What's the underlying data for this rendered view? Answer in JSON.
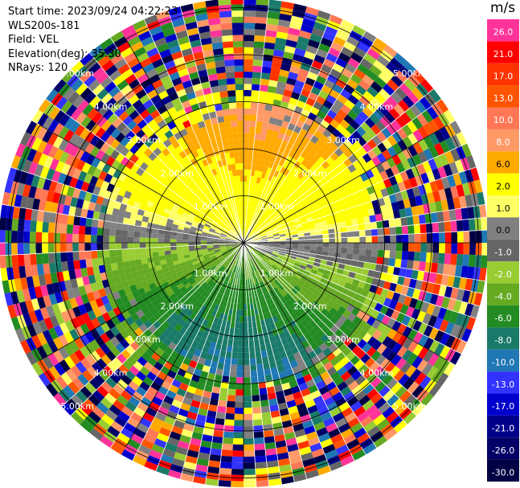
{
  "info": {
    "start_time": "Start time: 2023/09/24 04:22:23",
    "instrument": "WLS200s-181",
    "field": "Field: VEL",
    "elevation": "Elevation(deg): 35.30",
    "nrays": "NRays: 120"
  },
  "colorbar": {
    "unit": "m/s",
    "ticks": [
      "26.0",
      "21.0",
      "17.0",
      "13.0",
      "10.0",
      "8.0",
      "6.0",
      "2.0",
      "1.0",
      "0.0",
      "-1.0",
      "-2.0",
      "-4.0",
      "-6.0",
      "-8.0",
      "-10.0",
      "-13.0",
      "-17.0",
      "-21.0",
      "-26.0",
      "-30.0"
    ],
    "colors": [
      "#ff3399",
      "#ff0000",
      "#ff3300",
      "#ff5500",
      "#ff7755",
      "#ff9966",
      "#ffaa00",
      "#ffff00",
      "#ffff66",
      "#808080",
      "#666666",
      "#99cc33",
      "#66aa22",
      "#228b22",
      "#1a7a6a",
      "#1f77b4",
      "#3333ff",
      "#0000cc",
      "#00008b",
      "#000066",
      "#000044"
    ]
  },
  "ppi": {
    "ring_labels": [
      "1.00km",
      "2.00km",
      "3.00km",
      "4.00km",
      "5.00km"
    ]
  },
  "chart_data": {
    "type": "heatmap",
    "projection": "polar PPI",
    "variable": "VEL",
    "unit": "m/s",
    "nrays": 120,
    "elevation_deg": 35.3,
    "range_rings_km": [
      1,
      2,
      3,
      4,
      5
    ],
    "colorbar_range": [
      -30.0,
      26.0
    ],
    "pattern": {
      "positive_sector_azimuth_deg": [
        270,
        80
      ],
      "negative_sector_azimuth_deg": [
        90,
        260
      ],
      "coherent_radius_km": 2.9,
      "outer_region": "noise"
    }
  }
}
